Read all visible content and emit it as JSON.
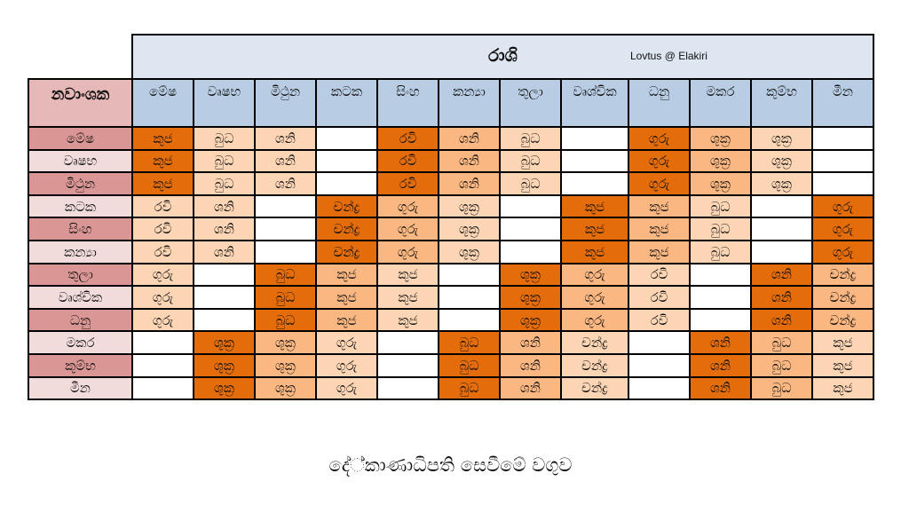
{
  "table": {
    "title": "රාශි",
    "credit": "Lovtus @ Elakiri",
    "corner_label": "නවාංශක",
    "columns": [
      "මේෂ",
      "වෘෂභ",
      "මිථුන",
      "කටක",
      "සිංහ",
      "කන්‍යා",
      "තුලා",
      "වෘශ්චික",
      "ධනු",
      "මකර",
      "කුම්භ",
      "මීන"
    ],
    "rows": [
      {
        "label": "මේෂ",
        "shade": "dark",
        "cells": [
          "කුජ",
          "බුධ",
          "ශනි",
          "",
          "රවි",
          "ශනි",
          "බුධ",
          "",
          "ගුරු",
          "ශුක්‍ර",
          "ශුක්‍ර",
          ""
        ],
        "colors": [
          3,
          1,
          1,
          0,
          3,
          2,
          1,
          0,
          3,
          2,
          1,
          0
        ]
      },
      {
        "label": "වෘෂභ",
        "shade": "light",
        "cells": [
          "කුජ",
          "බුධ",
          "ශනි",
          "",
          "රවි",
          "ශනි",
          "බුධ",
          "",
          "ගුරු",
          "ශුක්‍ර",
          "ශුක්‍ර",
          ""
        ],
        "colors": [
          3,
          1,
          1,
          0,
          3,
          2,
          1,
          0,
          3,
          2,
          1,
          0
        ]
      },
      {
        "label": "මිථුන",
        "shade": "dark",
        "cells": [
          "කුජ",
          "බුධ",
          "ශනි",
          "",
          "රවි",
          "ශනි",
          "බුධ",
          "",
          "ගුරු",
          "ශුක්‍ර",
          "ශුක්‍ර",
          ""
        ],
        "colors": [
          3,
          1,
          1,
          0,
          3,
          2,
          1,
          0,
          3,
          2,
          1,
          0
        ]
      },
      {
        "label": "කටක",
        "shade": "light",
        "cells": [
          "රවි",
          "ශනි",
          "",
          "චන්ද්‍ර",
          "ගුරු",
          "ශුක්‍ර",
          "",
          "කුජ",
          "කුජ",
          "බුධ",
          "",
          "ගුරු"
        ],
        "colors": [
          1,
          1,
          0,
          3,
          2,
          1,
          0,
          3,
          2,
          1,
          0,
          3
        ]
      },
      {
        "label": "සිංහ",
        "shade": "dark",
        "cells": [
          "රවි",
          "ශනි",
          "",
          "චන්ද්‍ර",
          "ගුරු",
          "ශුක්‍ර",
          "",
          "කුජ",
          "කුජ",
          "බුධ",
          "",
          "ගුරු"
        ],
        "colors": [
          1,
          1,
          0,
          3,
          2,
          1,
          0,
          3,
          2,
          1,
          0,
          3
        ]
      },
      {
        "label": "කන්‍යා",
        "shade": "light",
        "cells": [
          "රවි",
          "ශනි",
          "",
          "චන්ද්‍ර",
          "ගුරු",
          "ශුක්‍ර",
          "",
          "කුජ",
          "කුජ",
          "බුධ",
          "",
          "ගුරු"
        ],
        "colors": [
          1,
          1,
          0,
          3,
          2,
          1,
          0,
          3,
          2,
          1,
          0,
          3
        ]
      },
      {
        "label": "තුලා",
        "shade": "dark",
        "cells": [
          "ගුරු",
          "",
          "බුධ",
          "කුජ",
          "කුජ",
          "",
          "ශුක්‍ර",
          "ගුරු",
          "රවි",
          "",
          "ශනි",
          "චන්ද්‍ර"
        ],
        "colors": [
          1,
          0,
          3,
          2,
          1,
          0,
          3,
          2,
          1,
          0,
          3,
          2
        ]
      },
      {
        "label": "වෘශ්චික",
        "shade": "light",
        "cells": [
          "ගුරු",
          "",
          "බුධ",
          "කුජ",
          "කුජ",
          "",
          "ශුක්‍ර",
          "ගුරු",
          "රවි",
          "",
          "ශනි",
          "චන්ද්‍ර"
        ],
        "colors": [
          1,
          0,
          3,
          2,
          1,
          0,
          3,
          2,
          1,
          0,
          3,
          2
        ]
      },
      {
        "label": "ධනු",
        "shade": "dark",
        "cells": [
          "ගුරු",
          "",
          "බුධ",
          "කුජ",
          "කුජ",
          "",
          "ශුක්‍ර",
          "ගුරු",
          "රවි",
          "",
          "ශනි",
          "චන්ද්‍ර"
        ],
        "colors": [
          1,
          0,
          3,
          2,
          1,
          0,
          3,
          2,
          1,
          0,
          3,
          2
        ]
      },
      {
        "label": "මකර",
        "shade": "light",
        "cells": [
          "",
          "ශුක්‍ර",
          "ශුක්‍ර",
          "ගුරු",
          "",
          "බුධ",
          "ශනි",
          "චන්ද්‍ර",
          "",
          "ශනි",
          "බුධ",
          "කුජ"
        ],
        "colors": [
          0,
          3,
          2,
          1,
          0,
          3,
          2,
          1,
          0,
          3,
          2,
          1
        ]
      },
      {
        "label": "කුම්භ",
        "shade": "dark",
        "cells": [
          "",
          "ශුක්‍ර",
          "ශුක්‍ර",
          "ගුරු",
          "",
          "බුධ",
          "ශනි",
          "චන්ද්‍ර",
          "",
          "ශනි",
          "බුධ",
          "කුජ"
        ],
        "colors": [
          0,
          3,
          2,
          1,
          0,
          3,
          2,
          1,
          0,
          3,
          2,
          1
        ]
      },
      {
        "label": "මීන",
        "shade": "light",
        "cells": [
          "",
          "ශුක්‍ර",
          "ශුක්‍ර",
          "ගුරු",
          "",
          "බුධ",
          "ශනි",
          "චන්ද්‍ර",
          "",
          "ශනි",
          "බුධ",
          "කුජ"
        ],
        "colors": [
          0,
          3,
          2,
          1,
          0,
          3,
          2,
          1,
          0,
          3,
          2,
          1
        ]
      }
    ]
  },
  "caption": "දේ්කාණාධිපති සෙවීමේ වගුව",
  "palette": {
    "white": "#ffffff",
    "light_peach": "#fcd5b5",
    "peach": "#fab781",
    "orange": "#e46c0a",
    "header_blue": "#dde6f1",
    "column_blue": "#b8cce4",
    "row_dark": "#da9694",
    "row_light": "#f2dcdb",
    "corner_pink": "#e6b9b8"
  }
}
